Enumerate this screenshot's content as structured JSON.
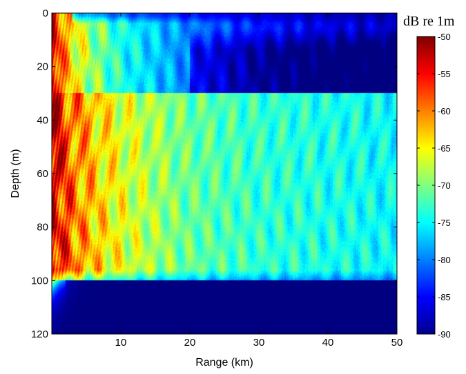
{
  "chart_data": {
    "type": "heatmap",
    "title": "",
    "xlabel": "Range (km)",
    "ylabel": "Depth (m)",
    "xlim": [
      0,
      50
    ],
    "ylim": [
      0,
      120
    ],
    "y_reversed": true,
    "x_ticks": [
      "10",
      "20",
      "30",
      "40",
      "50"
    ],
    "y_ticks": [
      "0",
      "20",
      "40",
      "60",
      "80",
      "100",
      "120"
    ],
    "colorbar": {
      "label": "dB re 1m",
      "colormap": "jet",
      "clim": [
        -90,
        -50
      ],
      "ticks": [
        "-50",
        "-55",
        "-60",
        "-65",
        "-70",
        "-75",
        "-80",
        "-85",
        "-90"
      ]
    },
    "layers": {
      "surface_duct_depth": [
        0,
        30
      ],
      "water_column_depth": [
        30,
        100
      ],
      "bottom_depth": [
        100,
        120
      ]
    },
    "levels_db_by_range": {
      "range_km": [
        0,
        2,
        5,
        10,
        20,
        30,
        40,
        50
      ],
      "water_column": [
        -52,
        -58,
        -62,
        -66,
        -71,
        -73,
        -74,
        -75
      ],
      "surface_duct": [
        -52,
        -62,
        -68,
        -74,
        -80,
        -84,
        -86,
        -87
      ],
      "bottom": [
        -90,
        -90,
        -90,
        -90,
        -90,
        -90,
        -90,
        -90
      ]
    }
  }
}
